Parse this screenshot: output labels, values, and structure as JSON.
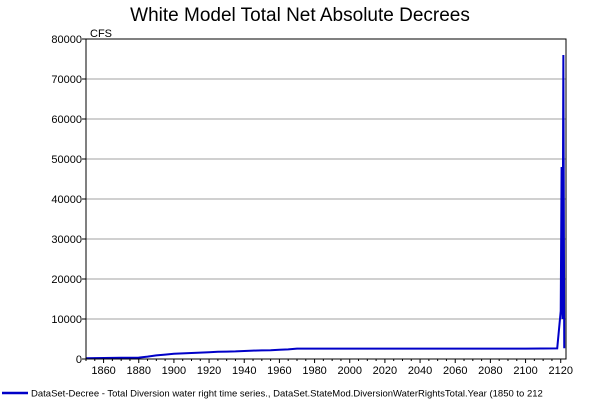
{
  "chart_data": {
    "type": "line",
    "title": "White Model Total Net Absolute Decrees",
    "ylabel": "CFS",
    "xlabel": "",
    "xlim": [
      1850,
      2123
    ],
    "ylim": [
      0,
      80000
    ],
    "yticks": [
      0,
      10000,
      20000,
      30000,
      40000,
      50000,
      60000,
      70000,
      80000
    ],
    "xticks": [
      1860,
      1880,
      1900,
      1920,
      1940,
      1960,
      1980,
      2000,
      2020,
      2040,
      2060,
      2080,
      2100,
      2120
    ],
    "grid": true,
    "legend_position": "bottom",
    "series": [
      {
        "name": "DataSet-Decree - Total Diversion water right time series., DataSet.StateMod.DiversionWaterRightsTotal.Year (1850 to 212",
        "color": "#0000c8",
        "x": [
          1850,
          1860,
          1870,
          1880,
          1885,
          1890,
          1895,
          1900,
          1905,
          1910,
          1915,
          1920,
          1925,
          1930,
          1935,
          1940,
          1945,
          1950,
          1955,
          1960,
          1965,
          1970,
          2000,
          2050,
          2100,
          2118,
          2120,
          2120.5,
          2121,
          2121.5,
          2122
        ],
        "y": [
          200,
          250,
          300,
          350,
          600,
          900,
          1100,
          1300,
          1400,
          1500,
          1600,
          1700,
          1800,
          1850,
          1900,
          2000,
          2100,
          2150,
          2200,
          2300,
          2400,
          2600,
          2600,
          2600,
          2600,
          2650,
          12000,
          48000,
          10000,
          76000,
          2700
        ]
      }
    ]
  }
}
